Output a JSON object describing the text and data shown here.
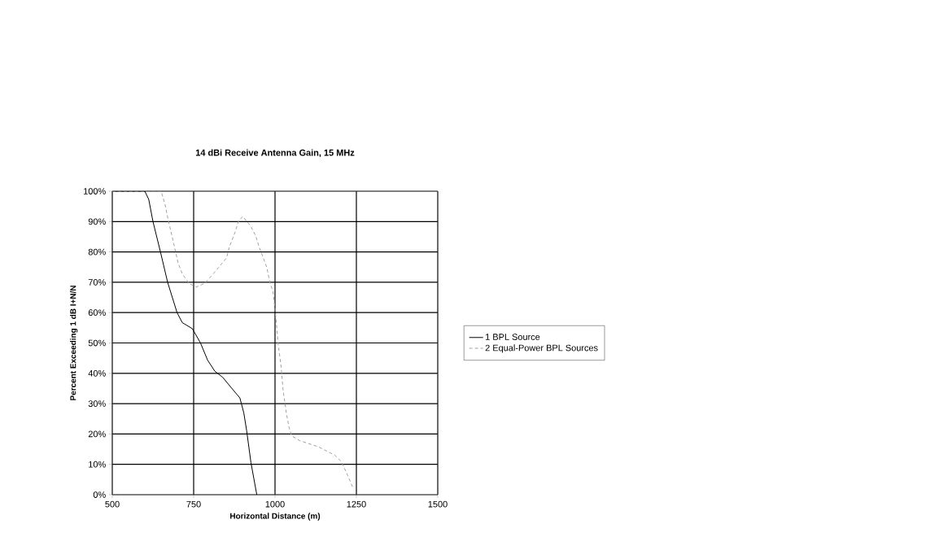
{
  "chart_data": {
    "type": "line",
    "title": "14 dBi Receive Antenna Gain, 15 MHz",
    "xlabel": "Horizontal Distance (m)",
    "ylabel": "Percent Exceeding 1 dB I+N/N",
    "xlim": [
      500,
      1500
    ],
    "xticks": [
      500,
      750,
      1000,
      1250,
      1500
    ],
    "ylim": [
      0,
      100
    ],
    "yticks": [
      {
        "value": 0,
        "label": "0%"
      },
      {
        "value": 10,
        "label": "10%"
      },
      {
        "value": 20,
        "label": "20%"
      },
      {
        "value": 30,
        "label": "30%"
      },
      {
        "value": 40,
        "label": "40%"
      },
      {
        "value": 50,
        "label": "50%"
      },
      {
        "value": 60,
        "label": "60%"
      },
      {
        "value": 70,
        "label": "70%"
      },
      {
        "value": 80,
        "label": "80%"
      },
      {
        "value": 90,
        "label": "90%"
      },
      {
        "value": 100,
        "label": "100%"
      }
    ],
    "grid": true,
    "legend": "right",
    "marker": "none",
    "series": [
      {
        "name": "1 BPL Source",
        "color": "#000000",
        "line_style": "solid",
        "x": [
          500,
          600,
          612,
          625,
          648,
          670,
          699,
          715,
          746,
          771,
          793,
          815,
          839,
          873,
          892,
          904,
          913,
          926,
          944
        ],
        "values": [
          100,
          100,
          97.3,
          90,
          80,
          70,
          60,
          56.7,
          54.7,
          50,
          44.3,
          40.7,
          38.7,
          34.3,
          31.9,
          27,
          21,
          10.6,
          0
        ]
      },
      {
        "name": "2 Equal-Power BPL Sources",
        "color": "#a0a0a0",
        "line_style": "dashed",
        "x": [
          500,
          650,
          662,
          671,
          687,
          702,
          715,
          736,
          758,
          783,
          804,
          826,
          851,
          860,
          876,
          888,
          901,
          926,
          941,
          950,
          963,
          975,
          984,
          994,
          1000,
          1003,
          1009,
          1019,
          1025,
          1035,
          1044,
          1051,
          1076,
          1133,
          1184,
          1203,
          1219,
          1235,
          1240
        ],
        "values": [
          100,
          100,
          95.7,
          90.9,
          83.6,
          76.4,
          72.8,
          69.6,
          68.4,
          69.6,
          72,
          74.8,
          78,
          81.7,
          86.1,
          90.1,
          91.7,
          88.4,
          85.2,
          82,
          78.3,
          74.8,
          70,
          66.8,
          61,
          58,
          50.3,
          41.9,
          34.3,
          26.7,
          21.8,
          19.4,
          17.8,
          15.8,
          13,
          11,
          7.4,
          3.4,
          2
        ]
      }
    ]
  }
}
